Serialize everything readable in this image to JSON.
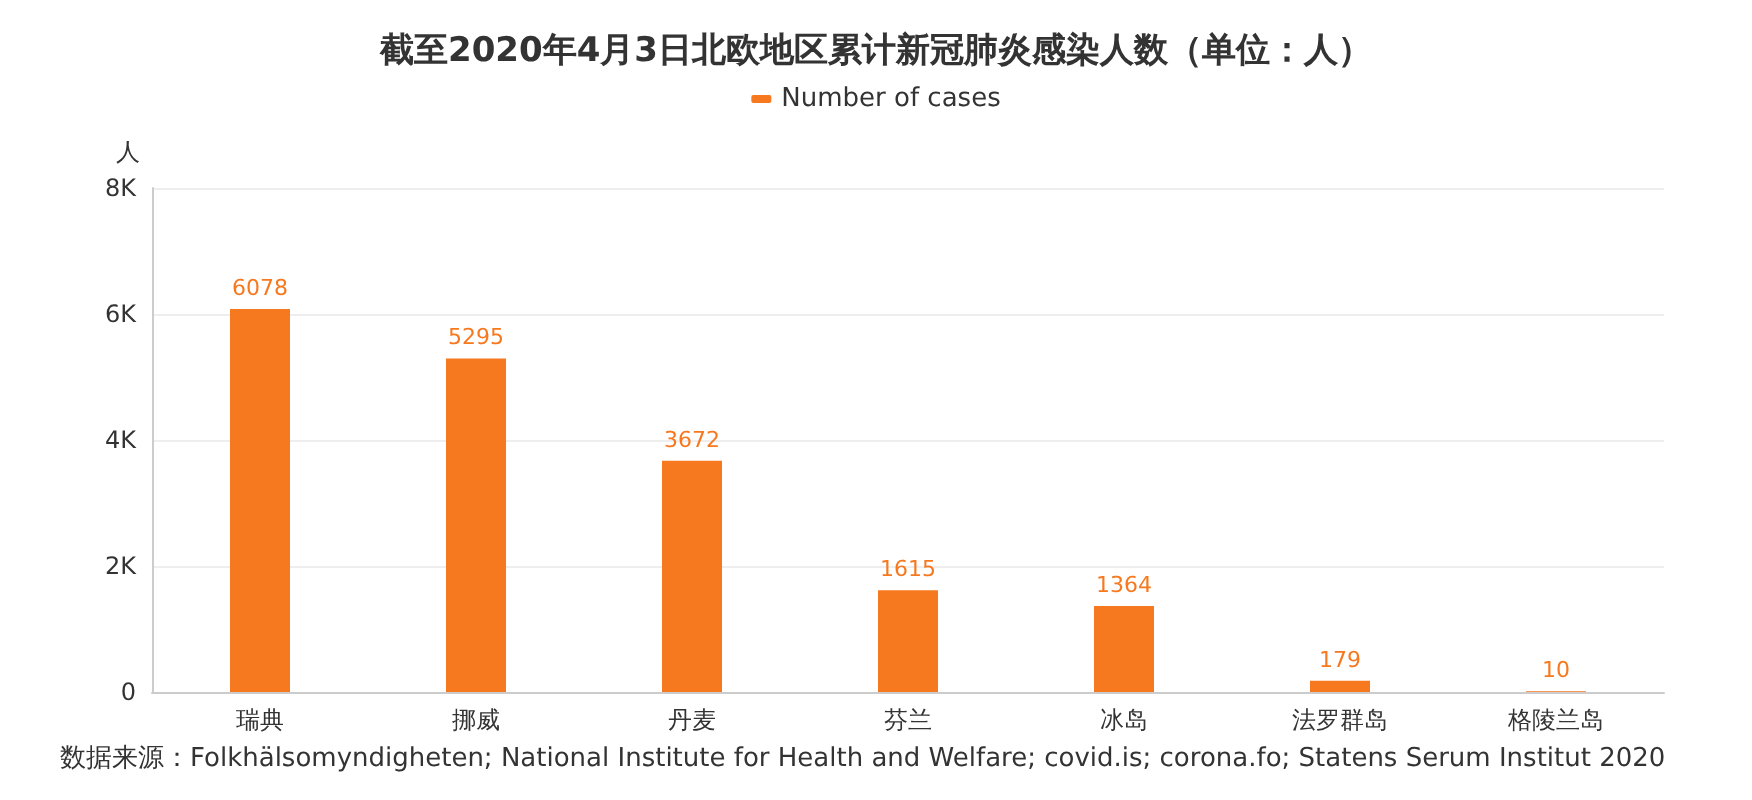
{
  "chart_data": {
    "type": "bar",
    "title": "截至2020年4月3日北欧地区累计新冠肺炎感染人数（单位：人）",
    "ylabel": "人",
    "categories": [
      "瑞典",
      "挪威",
      "丹麦",
      "芬兰",
      "冰岛",
      "法罗群岛",
      "格陵兰岛"
    ],
    "series": [
      {
        "name": "Number of cases",
        "color": "#f7791f",
        "values": [
          6078,
          5295,
          3672,
          1615,
          1364,
          179,
          10
        ]
      }
    ],
    "ylim": [
      0,
      8000
    ],
    "yticks": [
      {
        "value": 0,
        "label": "0"
      },
      {
        "value": 2000,
        "label": "2K"
      },
      {
        "value": 4000,
        "label": "4K"
      },
      {
        "value": 6000,
        "label": "6K"
      },
      {
        "value": 8000,
        "label": "8K"
      }
    ],
    "grid": "y",
    "legend": "top",
    "data_labels": true,
    "annotations": [
      "数据来源：Folkhälsomyndigheten; National Institute for Health and Welfare; covid.is; corona.fo; Statens Serum Institut 2020"
    ]
  }
}
